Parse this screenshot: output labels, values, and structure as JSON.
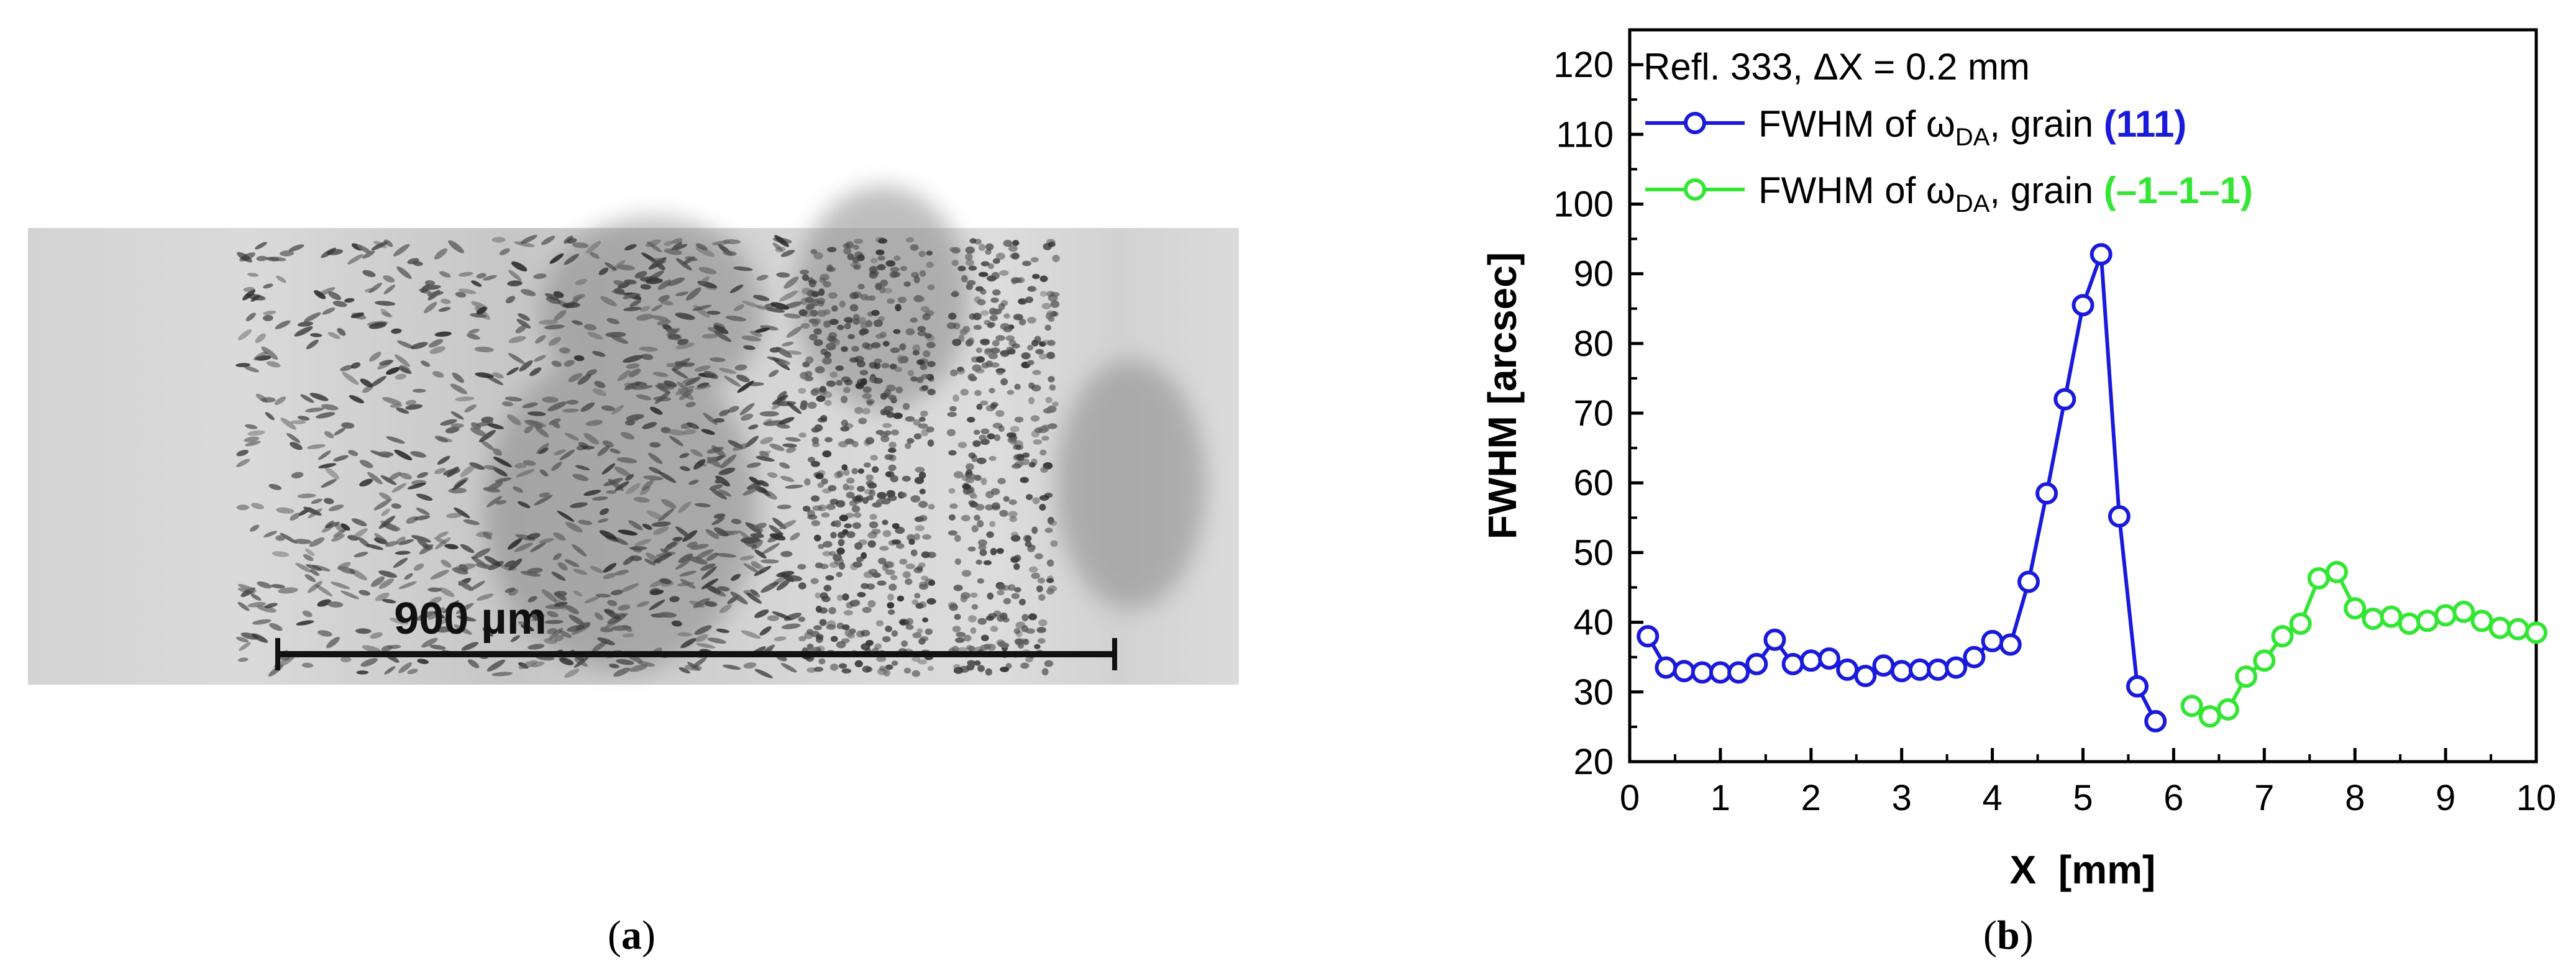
{
  "panel_a": {
    "scale_bar_label": "900 µm",
    "caption_letter": "a"
  },
  "panel_b": {
    "caption_letter": "b"
  },
  "chart_data": {
    "type": "line",
    "xlabel": "X  [mm]",
    "ylabel": "FWHM  [arcsec]",
    "xlim": [
      0,
      10
    ],
    "ylim": [
      20,
      125
    ],
    "xticks": [
      0,
      1,
      2,
      3,
      4,
      5,
      6,
      7,
      8,
      9,
      10
    ],
    "yticks": [
      20,
      30,
      40,
      50,
      60,
      70,
      80,
      90,
      100,
      110,
      120
    ],
    "grid": false,
    "legend_position": "top-left",
    "legend_title": "Refl. 333, ΔX = 0.2 mm",
    "colors": {
      "grain_111": "#1a1adc",
      "grain_m111": "#33e633"
    },
    "series": [
      {
        "key": "grain_111",
        "name_prefix": "FWHM of ω",
        "name_subscript": "DA",
        "name_middle": ", grain ",
        "name_bold": "(111)",
        "x": [
          0.2,
          0.4,
          0.6,
          0.8,
          1.0,
          1.2,
          1.4,
          1.6,
          1.8,
          2.0,
          2.2,
          2.4,
          2.6,
          2.8,
          3.0,
          3.2,
          3.4,
          3.6,
          3.8,
          4.0,
          4.2,
          4.4,
          4.6,
          4.8,
          5.0,
          5.2,
          5.4,
          5.6,
          5.8
        ],
        "y": [
          38,
          33.5,
          33,
          32.8,
          32.8,
          32.8,
          34,
          37.5,
          34,
          34.5,
          34.8,
          33.2,
          32.3,
          33.8,
          33,
          33.2,
          33.2,
          33.5,
          35,
          37.3,
          36.8,
          45.8,
          58.5,
          72,
          85.5,
          92.8,
          55.2,
          30.8,
          25.8
        ]
      },
      {
        "key": "grain_m111",
        "name_prefix": "FWHM of ω",
        "name_subscript": "DA",
        "name_middle": ", grain ",
        "name_bold": "(–1–1–1)",
        "x": [
          6.2,
          6.4,
          6.6,
          6.8,
          7.0,
          7.2,
          7.4,
          7.6,
          7.8,
          8.0,
          8.2,
          8.4,
          8.6,
          8.8,
          9.0,
          9.2,
          9.4,
          9.6,
          9.8,
          10.0
        ],
        "y": [
          28,
          26.5,
          27.5,
          32.2,
          34.5,
          38,
          39.8,
          46.3,
          47.2,
          42,
          40.5,
          40.8,
          39.8,
          40.2,
          41,
          41.5,
          40.2,
          39.2,
          39,
          38.5
        ]
      }
    ]
  }
}
